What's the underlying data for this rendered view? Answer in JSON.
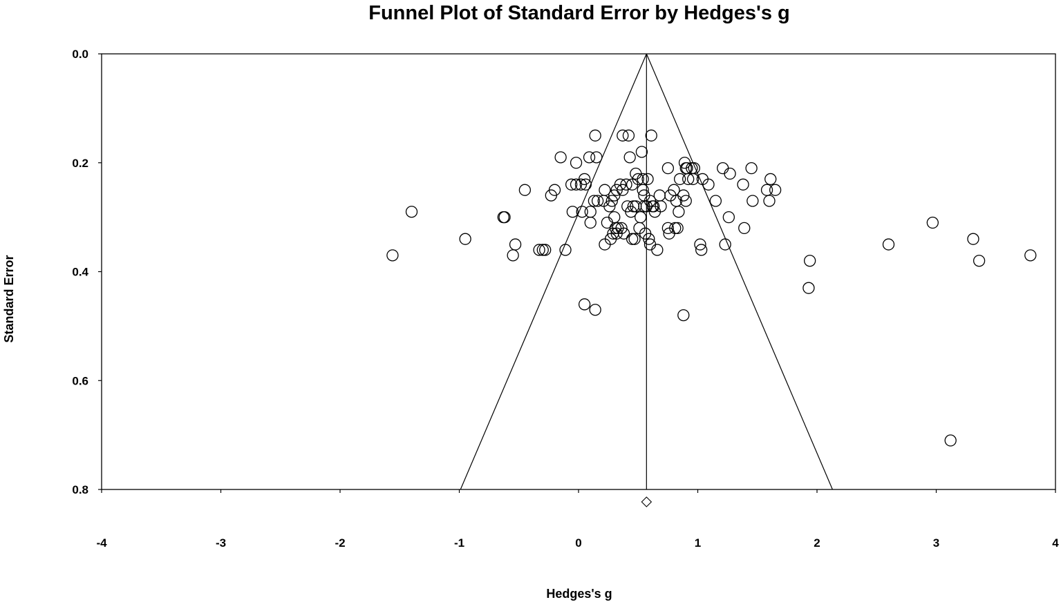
{
  "chart_data": {
    "type": "scatter",
    "title": "Funnel Plot of Standard Error by Hedges's g",
    "xlabel": "Hedges's g",
    "ylabel": "Standard Error",
    "xlim": [
      -4,
      4
    ],
    "ylim": [
      0.8,
      0.0
    ],
    "x_ticks": [
      "-4",
      "-3",
      "-2",
      "-1",
      "0",
      "1",
      "2",
      "3",
      "4"
    ],
    "y_ticks": [
      "0.0",
      "0.2",
      "0.4",
      "0.6",
      "0.8"
    ],
    "y_axis_inverted": true,
    "grid": false,
    "summary_effect": 0.57,
    "summary_marker": "diamond",
    "funnel_limits_at_bottom": [
      -0.99,
      2.13
    ],
    "marker": "open-circle",
    "points": [
      [
        -1.56,
        0.37
      ],
      [
        -1.4,
        0.29
      ],
      [
        -0.95,
        0.34
      ],
      [
        -0.63,
        0.3
      ],
      [
        -0.62,
        0.3
      ],
      [
        -0.53,
        0.35
      ],
      [
        -0.55,
        0.37
      ],
      [
        -0.45,
        0.25
      ],
      [
        -0.33,
        0.36
      ],
      [
        -0.3,
        0.36
      ],
      [
        -0.28,
        0.36
      ],
      [
        -0.2,
        0.25
      ],
      [
        -0.23,
        0.26
      ],
      [
        -0.15,
        0.19
      ],
      [
        -0.11,
        0.36
      ],
      [
        -0.06,
        0.24
      ],
      [
        -0.05,
        0.29
      ],
      [
        -0.02,
        0.2
      ],
      [
        -0.02,
        0.24
      ],
      [
        0.02,
        0.24
      ],
      [
        0.05,
        0.23
      ],
      [
        0.06,
        0.24
      ],
      [
        0.03,
        0.29
      ],
      [
        0.05,
        0.46
      ],
      [
        0.09,
        0.19
      ],
      [
        0.1,
        0.29
      ],
      [
        0.1,
        0.31
      ],
      [
        0.13,
        0.27
      ],
      [
        0.14,
        0.15
      ],
      [
        0.14,
        0.47
      ],
      [
        0.15,
        0.19
      ],
      [
        0.16,
        0.27
      ],
      [
        0.21,
        0.27
      ],
      [
        0.22,
        0.35
      ],
      [
        0.22,
        0.25
      ],
      [
        0.24,
        0.31
      ],
      [
        0.26,
        0.28
      ],
      [
        0.27,
        0.34
      ],
      [
        0.28,
        0.27
      ],
      [
        0.29,
        0.33
      ],
      [
        0.3,
        0.26
      ],
      [
        0.3,
        0.3
      ],
      [
        0.31,
        0.32
      ],
      [
        0.32,
        0.25
      ],
      [
        0.32,
        0.33
      ],
      [
        0.33,
        0.32
      ],
      [
        0.35,
        0.24
      ],
      [
        0.36,
        0.32
      ],
      [
        0.37,
        0.15
      ],
      [
        0.37,
        0.25
      ],
      [
        0.38,
        0.33
      ],
      [
        0.4,
        0.24
      ],
      [
        0.41,
        0.28
      ],
      [
        0.42,
        0.15
      ],
      [
        0.43,
        0.19
      ],
      [
        0.44,
        0.29
      ],
      [
        0.45,
        0.24
      ],
      [
        0.45,
        0.34
      ],
      [
        0.46,
        0.28
      ],
      [
        0.47,
        0.34
      ],
      [
        0.48,
        0.22
      ],
      [
        0.48,
        0.28
      ],
      [
        0.5,
        0.23
      ],
      [
        0.51,
        0.32
      ],
      [
        0.52,
        0.3
      ],
      [
        0.53,
        0.18
      ],
      [
        0.54,
        0.23
      ],
      [
        0.54,
        0.25
      ],
      [
        0.55,
        0.26
      ],
      [
        0.55,
        0.28
      ],
      [
        0.56,
        0.33
      ],
      [
        0.57,
        0.28
      ],
      [
        0.58,
        0.23
      ],
      [
        0.59,
        0.34
      ],
      [
        0.6,
        0.27
      ],
      [
        0.6,
        0.35
      ],
      [
        0.61,
        0.15
      ],
      [
        0.62,
        0.28
      ],
      [
        0.63,
        0.28
      ],
      [
        0.64,
        0.29
      ],
      [
        0.66,
        0.36
      ],
      [
        0.68,
        0.26
      ],
      [
        0.69,
        0.28
      ],
      [
        0.75,
        0.21
      ],
      [
        0.75,
        0.32
      ],
      [
        0.76,
        0.33
      ],
      [
        0.77,
        0.26
      ],
      [
        0.8,
        0.25
      ],
      [
        0.81,
        0.32
      ],
      [
        0.82,
        0.27
      ],
      [
        0.83,
        0.32
      ],
      [
        0.84,
        0.29
      ],
      [
        0.85,
        0.23
      ],
      [
        0.88,
        0.26
      ],
      [
        0.89,
        0.2
      ],
      [
        0.9,
        0.21
      ],
      [
        0.9,
        0.27
      ],
      [
        0.91,
        0.21
      ],
      [
        0.92,
        0.23
      ],
      [
        0.95,
        0.21
      ],
      [
        0.96,
        0.23
      ],
      [
        0.97,
        0.21
      ],
      [
        0.88,
        0.48
      ],
      [
        1.02,
        0.35
      ],
      [
        1.03,
        0.36
      ],
      [
        1.04,
        0.23
      ],
      [
        1.09,
        0.24
      ],
      [
        1.15,
        0.27
      ],
      [
        1.21,
        0.21
      ],
      [
        1.23,
        0.35
      ],
      [
        1.26,
        0.3
      ],
      [
        1.27,
        0.22
      ],
      [
        1.38,
        0.24
      ],
      [
        1.39,
        0.32
      ],
      [
        1.45,
        0.21
      ],
      [
        1.46,
        0.27
      ],
      [
        1.58,
        0.25
      ],
      [
        1.6,
        0.27
      ],
      [
        1.61,
        0.23
      ],
      [
        1.65,
        0.25
      ],
      [
        1.93,
        0.43
      ],
      [
        1.94,
        0.38
      ],
      [
        2.6,
        0.35
      ],
      [
        2.97,
        0.31
      ],
      [
        3.12,
        0.71
      ],
      [
        3.31,
        0.34
      ],
      [
        3.36,
        0.38
      ],
      [
        3.79,
        0.37
      ]
    ]
  }
}
